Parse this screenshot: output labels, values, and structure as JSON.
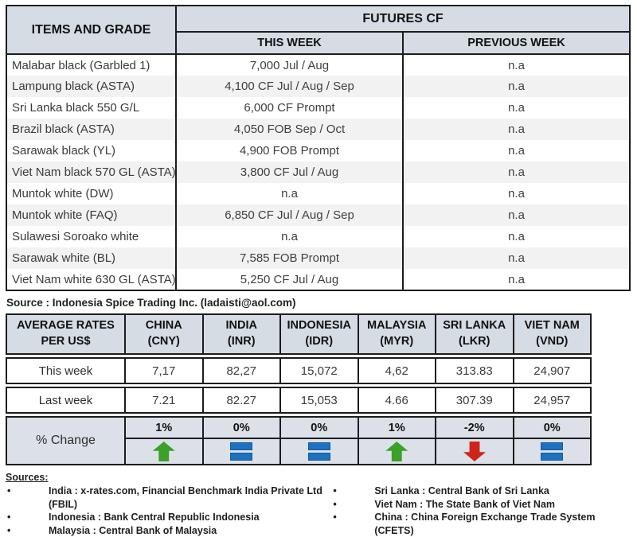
{
  "colors": {
    "header-bg": "#d6dce4",
    "band-bg": "#f2f2f2",
    "change-bg": "#dce1e9",
    "border": "#1c1c1c",
    "up": "#3da028",
    "down": "#ce2518",
    "flat": "#1d71bf"
  },
  "futures_table": {
    "header": {
      "items_and_grade": "ITEMS AND GRADE",
      "group": "FUTURES CF",
      "this_week": "THIS WEEK",
      "previous_week": "PREVIOUS WEEK"
    },
    "rows": [
      {
        "item": "Malabar black (Garbled 1)",
        "this_week": "7,000 Jul / Aug",
        "prev_week": "n.a"
      },
      {
        "item": "Lampung black (ASTA)",
        "this_week": "4,100 CF Jul / Aug / Sep",
        "prev_week": "n.a"
      },
      {
        "item": "Sri Lanka black 550 G/L",
        "this_week": "6,000 CF Prompt",
        "prev_week": "n.a"
      },
      {
        "item": "Brazil black (ASTA)",
        "this_week": "4,050 FOB Sep / Oct",
        "prev_week": "n.a"
      },
      {
        "item": "Sarawak black (YL)",
        "this_week": "4,900 FOB Prompt",
        "prev_week": "n.a"
      },
      {
        "item": "Viet Nam black 570 GL (ASTA)",
        "this_week": "3,800 CF Jul / Aug",
        "prev_week": "n.a"
      },
      {
        "item": "Muntok white (DW)",
        "this_week": "n.a",
        "prev_week": "n.a"
      },
      {
        "item": "Muntok white (FAQ)",
        "this_week": "6,850 CF Jul / Aug / Sep",
        "prev_week": "n.a"
      },
      {
        "item": "Sulawesi Soroako white",
        "this_week": "n.a",
        "prev_week": "n.a"
      },
      {
        "item": "Sarawak  white (BL)",
        "this_week": "7,585 FOB Prompt",
        "prev_week": "n.a"
      },
      {
        "item": "Viet Nam white 630 GL (ASTA)",
        "this_week": "5,250 CF Jul / Aug",
        "prev_week": "n.a"
      }
    ],
    "source_note": "Source : Indonesia Spice Trading Inc. (ladaisti@aol.com)"
  },
  "rates_table": {
    "header": {
      "label_line1": "AVERAGE RATES",
      "label_line2": "PER US$"
    },
    "row_labels": {
      "this_week": "This week",
      "last_week": "Last week",
      "pct_change": "% Change"
    },
    "columns": [
      {
        "country": "CHINA",
        "code": "(CNY)",
        "this_week": "7,17",
        "last_week": "7.21",
        "pct_change": "1%",
        "trend": "up"
      },
      {
        "country": "INDIA",
        "code": "(INR)",
        "this_week": "82,27",
        "last_week": "82.27",
        "pct_change": "0%",
        "trend": "flat"
      },
      {
        "country": "INDONESIA",
        "code": "(IDR)",
        "this_week": "15,072",
        "last_week": "15,053",
        "pct_change": "0%",
        "trend": "flat"
      },
      {
        "country": "MALAYSIA",
        "code": "(MYR)",
        "this_week": "4,62",
        "last_week": "4.66",
        "pct_change": "1%",
        "trend": "up"
      },
      {
        "country": "SRI LANKA",
        "code": "(LKR)",
        "this_week": "313.83",
        "last_week": "307.39",
        "pct_change": "-2%",
        "trend": "down"
      },
      {
        "country": "VIET NAM",
        "code": "(VND)",
        "this_week": "24,907",
        "last_week": "24,957",
        "pct_change": "0%",
        "trend": "flat"
      }
    ]
  },
  "sources": {
    "title": "Sources:",
    "bullet": "•",
    "left": [
      "India : x-rates.com, Financial Benchmark India Private Ltd (FBIL)",
      "Indonesia : Bank Central Republic Indonesia",
      "Malaysia : Central Bank of Malaysia"
    ],
    "right": [
      "Sri Lanka : Central Bank of Sri Lanka",
      "Viet Nam : The State Bank of Viet Nam",
      "China : China Foreign Exchange Trade System (CFETS)"
    ]
  }
}
